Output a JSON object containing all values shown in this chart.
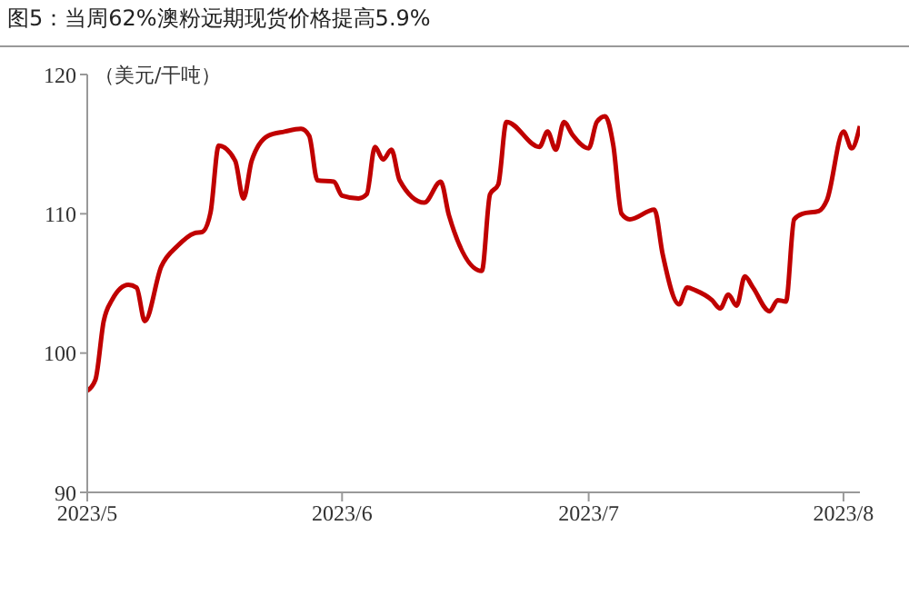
{
  "chart_data": {
    "type": "line",
    "title": "图5：当周62%澳粉远期现货价格提高5.9%",
    "ylabel": "（美元/干吨）",
    "x": [
      "2023-05-01",
      "2023-05-02",
      "2023-05-03",
      "2023-05-04",
      "2023-05-06",
      "2023-05-07",
      "2023-05-08",
      "2023-05-10",
      "2023-05-12",
      "2023-05-14",
      "2023-05-15",
      "2023-05-16",
      "2023-05-17",
      "2023-05-19",
      "2023-05-20",
      "2023-05-21",
      "2023-05-23",
      "2023-05-25",
      "2023-05-27",
      "2023-05-28",
      "2023-05-29",
      "2023-05-31",
      "2023-06-01",
      "2023-06-03",
      "2023-06-04",
      "2023-06-05",
      "2023-06-06",
      "2023-06-07",
      "2023-06-08",
      "2023-06-11",
      "2023-06-13",
      "2023-06-14",
      "2023-06-18",
      "2023-06-19",
      "2023-06-20",
      "2023-06-21",
      "2023-06-25",
      "2023-06-26",
      "2023-06-27",
      "2023-06-28",
      "2023-06-29",
      "2023-07-01",
      "2023-07-02",
      "2023-07-03",
      "2023-07-04",
      "2023-07-05",
      "2023-07-06",
      "2023-07-09",
      "2023-07-10",
      "2023-07-12",
      "2023-07-13",
      "2023-07-14",
      "2023-07-16",
      "2023-07-17",
      "2023-07-18",
      "2023-07-19",
      "2023-07-20",
      "2023-07-21",
      "2023-07-23",
      "2023-07-24",
      "2023-07-25",
      "2023-07-26",
      "2023-07-27",
      "2023-07-29",
      "2023-07-30",
      "2023-08-01",
      "2023-08-02",
      "2023-08-03"
    ],
    "series": [
      {
        "color": "#c00000",
        "values": [
          97.3,
          98.1,
          102.3,
          103.8,
          104.9,
          104.7,
          102.3,
          106.2,
          107.7,
          108.6,
          108.7,
          110.1,
          114.9,
          113.8,
          111.1,
          113.8,
          115.6,
          115.9,
          116.1,
          115.6,
          112.4,
          112.3,
          111.3,
          111.1,
          111.4,
          114.8,
          113.9,
          114.6,
          112.4,
          110.8,
          112.3,
          109.9,
          105.9,
          111.4,
          112.1,
          116.6,
          114.8,
          115.9,
          114.6,
          116.6,
          115.7,
          114.7,
          116.6,
          117.0,
          114.9,
          110.0,
          109.6,
          110.3,
          107.1,
          103.5,
          104.7,
          104.5,
          103.8,
          103.2,
          104.2,
          103.4,
          105.5,
          104.7,
          103.0,
          103.8,
          103.7,
          109.6,
          110.0,
          110.2,
          111.0,
          115.9,
          114.7,
          116.3
        ]
      }
    ],
    "xlim": [
      "2023-05-01",
      "2023-08-03"
    ],
    "xticks": [
      {
        "value": "2023-05-01",
        "label": "2023/5"
      },
      {
        "value": "2023-06-01",
        "label": "2023/6"
      },
      {
        "value": "2023-07-01",
        "label": "2023/7"
      },
      {
        "value": "2023-08-01",
        "label": "2023/8"
      }
    ],
    "ylim": [
      90,
      120
    ],
    "yticks": [
      90,
      100,
      110,
      120
    ],
    "grid": false,
    "legend": false,
    "marker": "none",
    "line_style": "solid"
  }
}
